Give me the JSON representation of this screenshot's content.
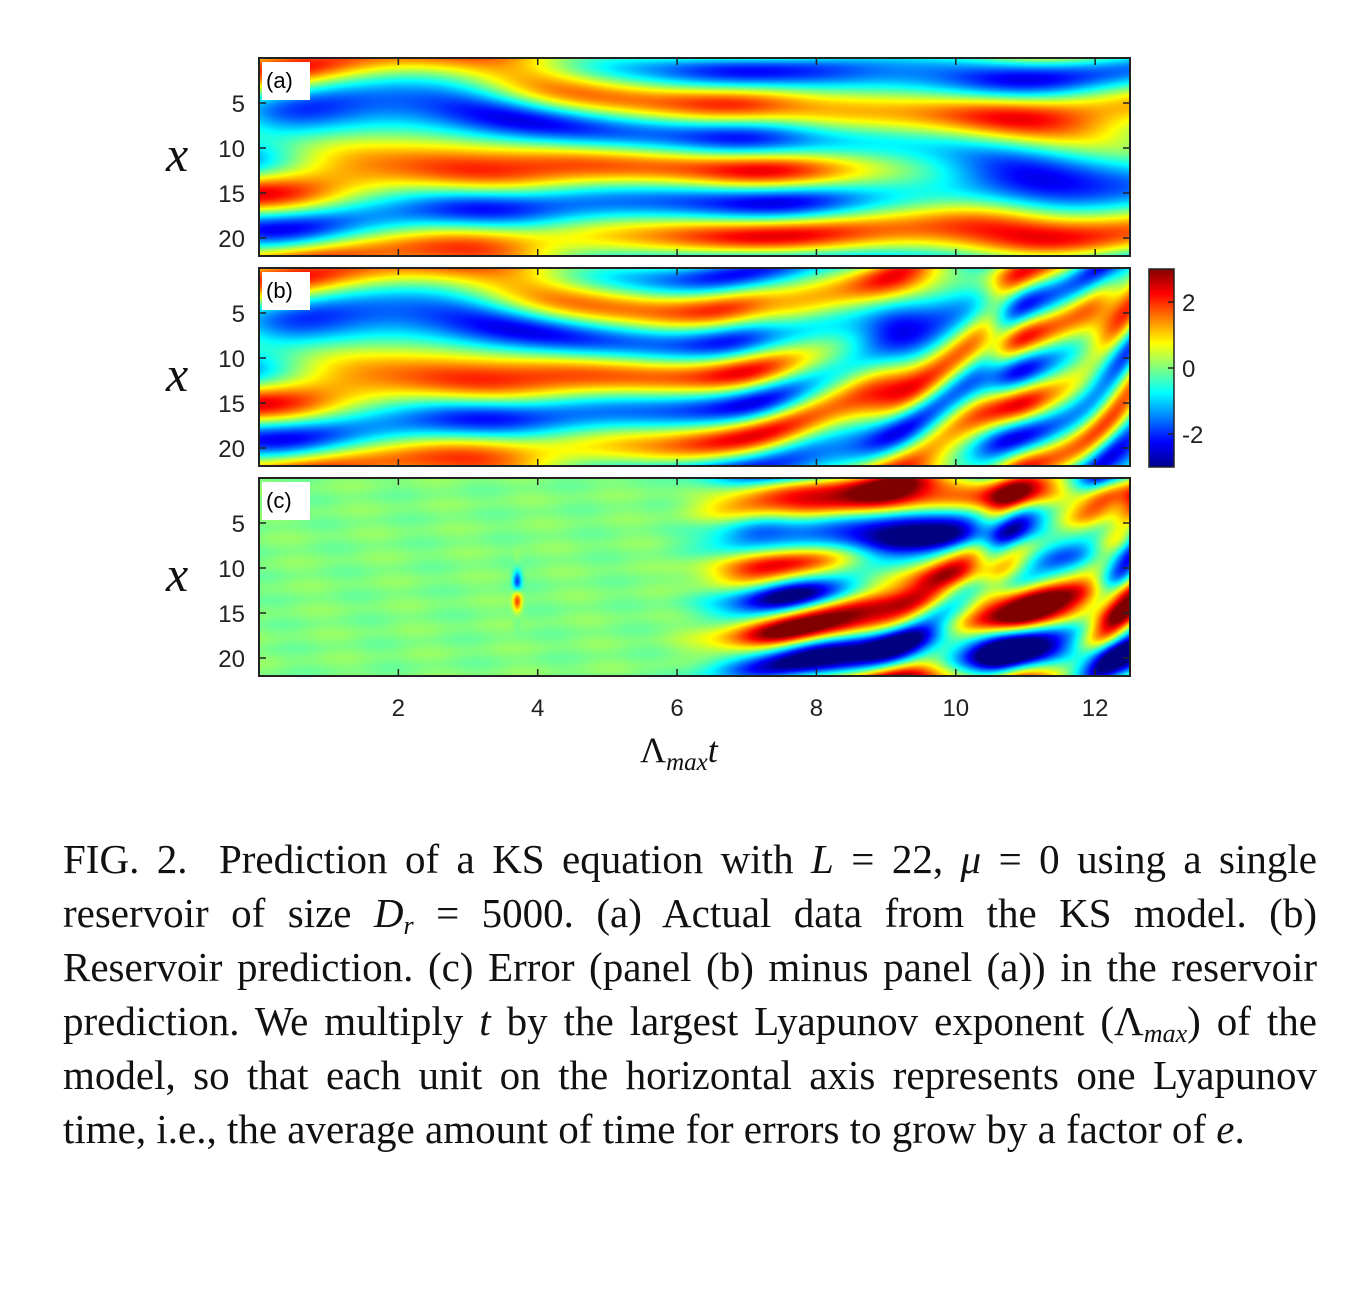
{
  "chart_data": [
    {
      "type": "heatmap",
      "panel_label": "(a)",
      "ylabel": "x",
      "yticks": [
        5,
        10,
        15,
        20
      ],
      "ylim": [
        0,
        22
      ],
      "xlim": [
        0,
        12.5
      ],
      "color_range": [
        -3,
        3
      ]
    },
    {
      "type": "heatmap",
      "panel_label": "(b)",
      "ylabel": "x",
      "yticks": [
        5,
        10,
        15,
        20
      ],
      "ylim": [
        0,
        22
      ],
      "xlim": [
        0,
        12.5
      ],
      "color_range": [
        -3,
        3
      ]
    },
    {
      "type": "heatmap",
      "panel_label": "(c)",
      "ylabel": "x",
      "yticks": [
        5,
        10,
        15,
        20
      ],
      "ylim": [
        0,
        22
      ],
      "xlim": [
        0,
        12.5
      ],
      "xticks": [
        2,
        4,
        6,
        8,
        10,
        12
      ],
      "xlabel": "Λmaxt",
      "error_onset_x": 5.5,
      "color_range": [
        -3,
        3
      ]
    }
  ],
  "colorbar": {
    "ticks": [
      "2",
      "0",
      "-2"
    ],
    "tick_values": [
      2,
      0,
      -2
    ],
    "range": [
      -3,
      3
    ],
    "colormap": [
      "#00008f",
      "#0020ff",
      "#00d0ff",
      "#7fff7f",
      "#ffe000",
      "#ff3000",
      "#800000"
    ]
  },
  "axis": {
    "xlabel_main": "Λ",
    "xlabel_sub": "max",
    "xlabel_tail": "t"
  },
  "caption": {
    "lead": "FIG. 2.",
    "p1": "Prediction of a KS equation with ",
    "L": "L",
    "p2": " = 22, ",
    "mu": "μ",
    "p3": " = 0 using a single reservoir of size ",
    "D": "D",
    "D_sub": "r",
    "p4": " = 5000. (a) Actual data from the KS model. (b) Reservoir prediction. (c) Error (panel (b) minus panel (a)) in the reservoir prediction. We multiply ",
    "t": "t",
    "p5": " by the largest Lyapunov exponent (Λ",
    "lambda_sub": "max",
    "p6": ") of the model, so that each unit on the horizontal axis represents one Lyapunov time, i.e., the average amount of time for errors to grow by a factor of ",
    "e": "e",
    "p7": "."
  }
}
